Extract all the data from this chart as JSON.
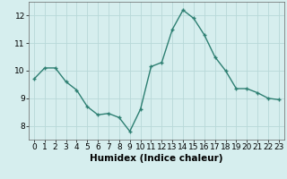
{
  "x": [
    0,
    1,
    2,
    3,
    4,
    5,
    6,
    7,
    8,
    9,
    10,
    11,
    12,
    13,
    14,
    15,
    16,
    17,
    18,
    19,
    20,
    21,
    22,
    23
  ],
  "y": [
    9.7,
    10.1,
    10.1,
    9.6,
    9.3,
    8.7,
    8.4,
    8.45,
    8.3,
    7.8,
    8.6,
    10.15,
    10.3,
    11.5,
    12.2,
    11.9,
    11.3,
    10.5,
    10.0,
    9.35,
    9.35,
    9.2,
    9.0,
    8.95
  ],
  "line_color": "#2d7f72",
  "marker_color": "#2d7f72",
  "bg_color": "#d6eeee",
  "grid_color": "#b8d8d8",
  "xlabel": "Humidex (Indice chaleur)",
  "ylim": [
    7.5,
    12.5
  ],
  "xlim_min": -0.5,
  "xlim_max": 23.5,
  "yticks": [
    8,
    9,
    10,
    11,
    12
  ],
  "xticks": [
    0,
    1,
    2,
    3,
    4,
    5,
    6,
    7,
    8,
    9,
    10,
    11,
    12,
    13,
    14,
    15,
    16,
    17,
    18,
    19,
    20,
    21,
    22,
    23
  ],
  "tick_fontsize": 6.5,
  "xlabel_fontsize": 7.5,
  "linewidth": 1.0,
  "markersize": 2.5
}
